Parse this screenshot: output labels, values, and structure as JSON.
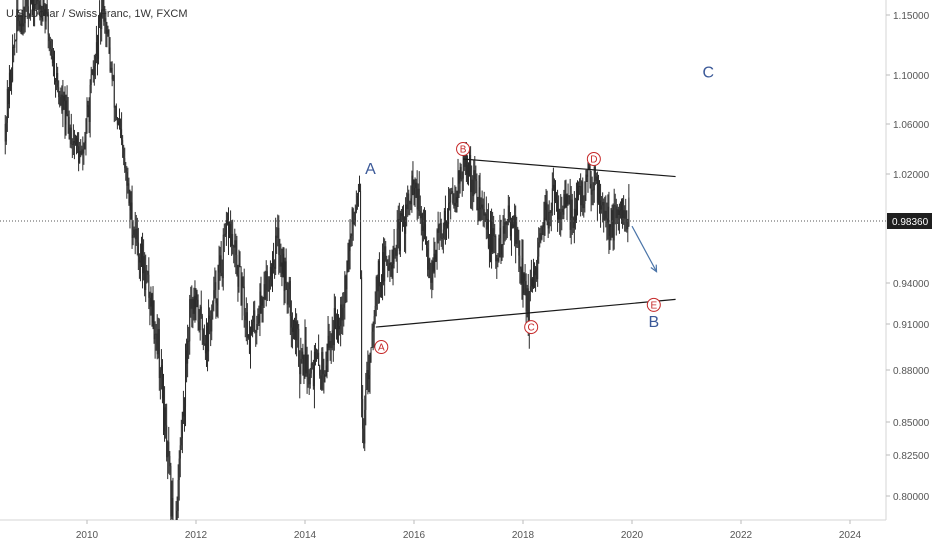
{
  "header": {
    "symbol_title": "U.S. Dollar / Swiss Franc, 1W, FXCM"
  },
  "colors": {
    "candle": "#2a2a2a",
    "price_line": "#555555",
    "price_tag_bg": "#1f1f1f",
    "price_tag_text": "#ffffff",
    "wave_letter": "#3b5998",
    "subwave_circle": "#c62828",
    "projection_arrow": "#4a74a8",
    "trendline": "#1a1a1a",
    "axis_text": "#555555"
  },
  "chart_data": {
    "type": "candlestick",
    "timeframe": "1W",
    "x_ticks": [
      "2010",
      "2012",
      "2014",
      "2016",
      "2018",
      "2020",
      "2022",
      "2024"
    ],
    "x_range": [
      2008.5,
      2025.0
    ],
    "y_ticks": [
      "1.15000",
      "1.10000",
      "1.06000",
      "1.02000",
      "0.98360",
      "0.94000",
      "0.91000",
      "0.88000",
      "0.85000",
      "0.82500",
      "0.80000"
    ],
    "current_price": "0.98360",
    "series_path": [
      [
        2008.5,
        1.06
      ],
      [
        2008.7,
        1.14
      ],
      [
        2008.9,
        1.16
      ],
      [
        2009.2,
        1.16
      ],
      [
        2009.5,
        1.08
      ],
      [
        2009.9,
        1.03
      ],
      [
        2010.3,
        1.16
      ],
      [
        2010.5,
        1.08
      ],
      [
        2010.8,
        0.99
      ],
      [
        2011.1,
        0.94
      ],
      [
        2011.3,
        0.9
      ],
      [
        2011.6,
        0.77
      ],
      [
        2011.9,
        0.93
      ],
      [
        2012.2,
        0.9
      ],
      [
        2012.6,
        0.98
      ],
      [
        2013.0,
        0.9
      ],
      [
        2013.5,
        0.97
      ],
      [
        2013.9,
        0.89
      ],
      [
        2014.3,
        0.88
      ],
      [
        2014.7,
        0.93
      ],
      [
        2015.0,
        1.02
      ],
      [
        2015.05,
        0.83
      ],
      [
        2015.3,
        0.94
      ],
      [
        2015.7,
        0.97
      ],
      [
        2016.0,
        1.01
      ],
      [
        2016.3,
        0.95
      ],
      [
        2016.6,
        0.99
      ],
      [
        2016.95,
        1.03
      ],
      [
        2017.5,
        0.96
      ],
      [
        2017.8,
        0.99
      ],
      [
        2018.1,
        0.92
      ],
      [
        2018.5,
        1.0
      ],
      [
        2018.9,
        0.99
      ],
      [
        2019.3,
        1.02
      ],
      [
        2019.6,
        0.98
      ],
      [
        2019.9,
        0.99
      ]
    ],
    "annotations": {
      "wave_labels": [
        {
          "text": "A",
          "x": 2015.2,
          "y": 1.02
        },
        {
          "text": "B",
          "x": 2020.4,
          "y": 0.908
        },
        {
          "text": "C",
          "x": 2021.4,
          "y": 1.098
        }
      ],
      "subwave_labels": [
        {
          "text": "A",
          "x": 2015.4,
          "y": 0.895
        },
        {
          "text": "B",
          "x": 2016.9,
          "y": 1.04
        },
        {
          "text": "C",
          "x": 2018.15,
          "y": 0.908
        },
        {
          "text": "D",
          "x": 2019.3,
          "y": 1.032
        },
        {
          "text": "E",
          "x": 2020.4,
          "y": 0.924
        }
      ],
      "trendlines": [
        {
          "from": [
            2016.9,
            1.032
          ],
          "to": [
            2020.8,
            1.018
          ]
        },
        {
          "from": [
            2015.3,
            0.908
          ],
          "to": [
            2020.8,
            0.928
          ]
        }
      ],
      "projection_arrow": {
        "from": [
          2020.0,
          0.98
        ],
        "to": [
          2020.45,
          0.948
        ]
      }
    }
  }
}
